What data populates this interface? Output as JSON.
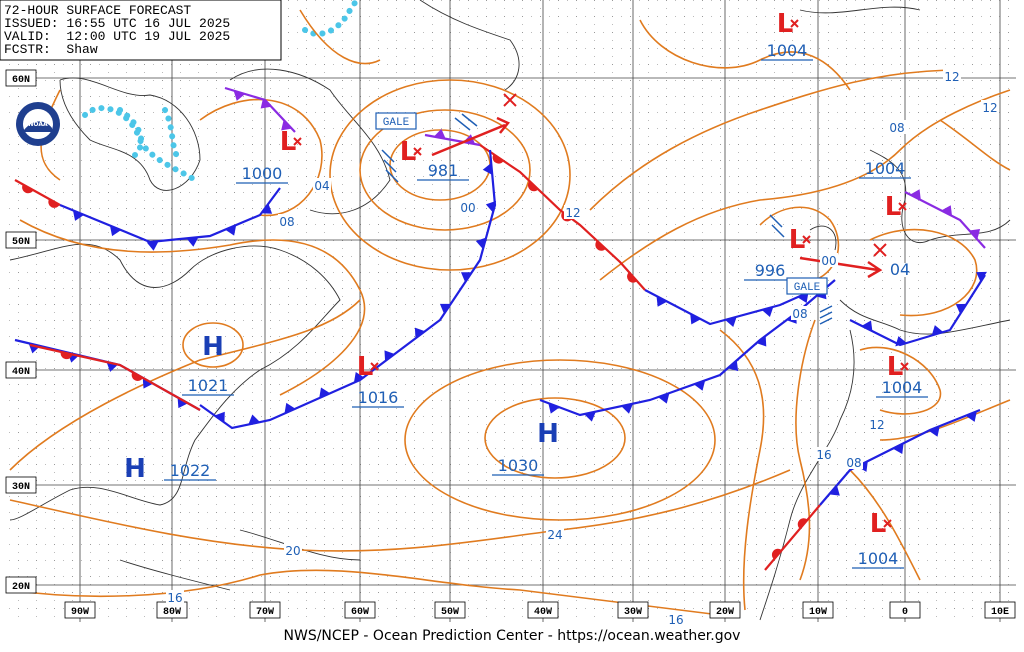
{
  "header": {
    "title": "72-HOUR SURFACE FORECAST",
    "issued": "ISSUED: 16:55 UTC 16 JUL 2025",
    "valid": "VALID:  12:00 UTC 19 JUL 2025",
    "forecaster": "FCSTR:  Shaw"
  },
  "logo": "NOAA",
  "latitudes": [
    "60N",
    "50N",
    "40N",
    "30N",
    "20N"
  ],
  "longitudes": [
    "90W",
    "80W",
    "70W",
    "60W",
    "50W",
    "40W",
    "30W",
    "20W",
    "10W",
    "0",
    "10E"
  ],
  "pressure_centers": [
    {
      "symbol": "H",
      "value": "1021"
    },
    {
      "symbol": "H",
      "value": "1022"
    },
    {
      "symbol": "H",
      "value": "1030"
    },
    {
      "symbol": "L",
      "value": "1000"
    },
    {
      "symbol": "L",
      "value": "981"
    },
    {
      "symbol": "L",
      "value": "1016"
    },
    {
      "symbol": "L",
      "value": "1004"
    },
    {
      "symbol": "L",
      "value": "1004"
    },
    {
      "symbol": "L",
      "value": "996"
    },
    {
      "symbol": "L",
      "value": "1004"
    },
    {
      "symbol": "L",
      "value": "1004"
    }
  ],
  "isobar_labels": [
    "04",
    "08",
    "00",
    "12",
    "12",
    "12",
    "08",
    "00",
    "04",
    "08",
    "16",
    "08",
    "12",
    "20",
    "24",
    "16",
    "16"
  ],
  "warnings": [
    "GALE",
    "GALE"
  ],
  "footer": "NWS/NCEP - Ocean Prediction Center - https://ocean.weather.gov"
}
